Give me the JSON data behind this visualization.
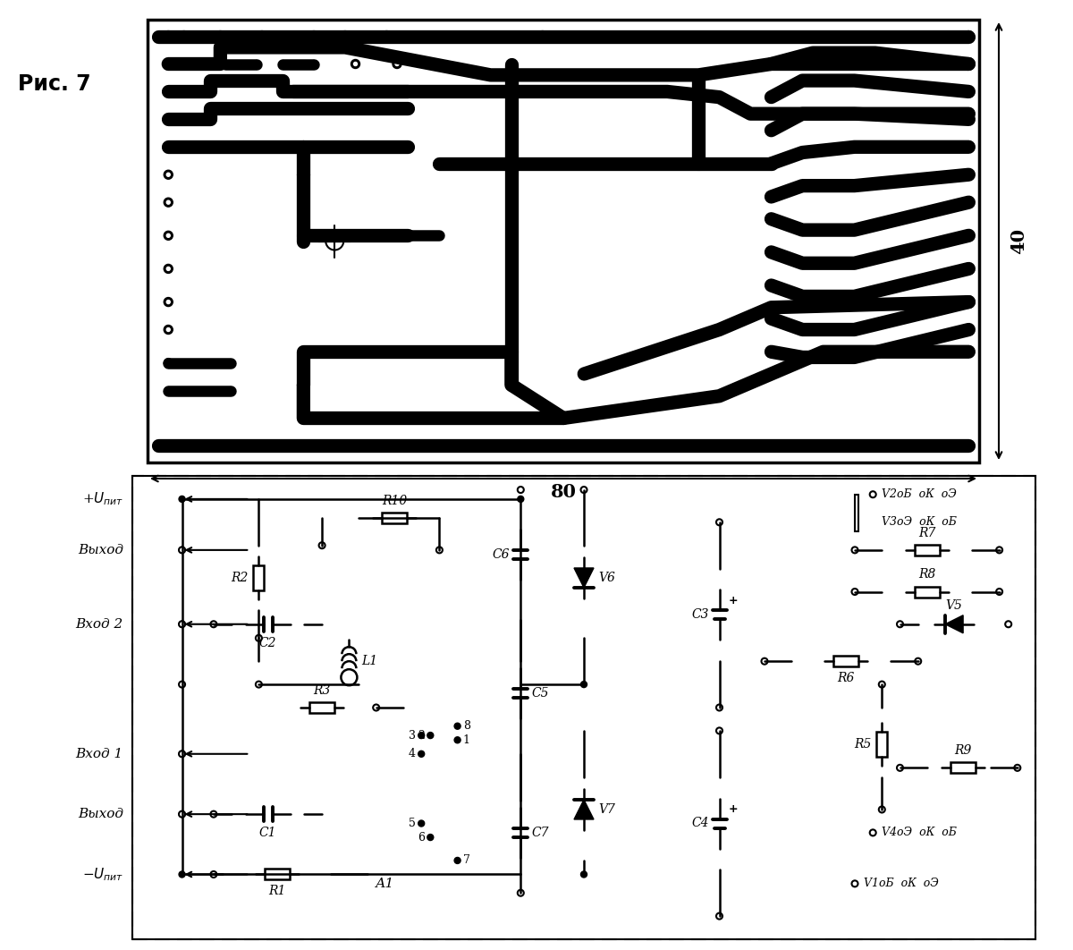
{
  "title": "Рис. 7",
  "bg_color": "#ffffff",
  "dim_label_80": "80",
  "dim_label_40": "40"
}
